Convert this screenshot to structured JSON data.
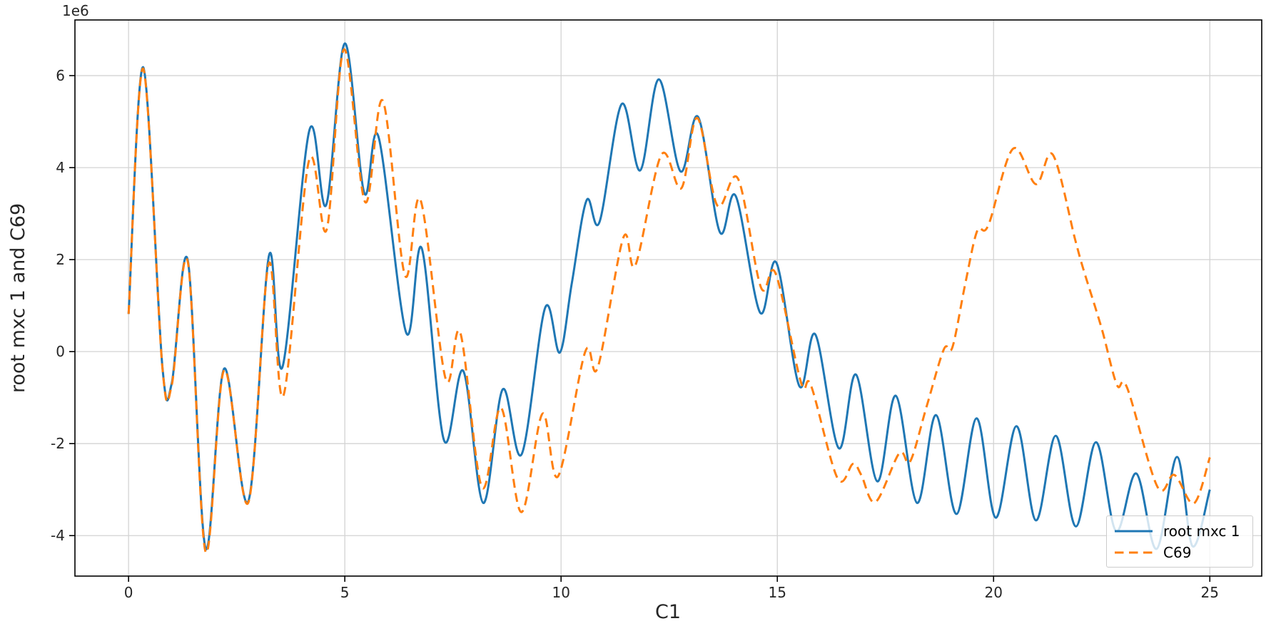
{
  "figure": {
    "offset_label": "1e6",
    "background": "#ffffff",
    "grid_color": "#d3d3d3",
    "spine_color": "#000000"
  },
  "legend": {
    "position": "lower right",
    "items": [
      {
        "label": "root mxc 1",
        "color": "#1f77b4",
        "style": "solid"
      },
      {
        "label": "C69",
        "color": "#ff7f0e",
        "style": "dashed"
      }
    ]
  },
  "chart_data": {
    "type": "line",
    "title": "",
    "xlabel": "C1",
    "ylabel": "root mxc 1 and C69",
    "y_offset_multiplier": "1e6",
    "grid": true,
    "legend_position": "lower right",
    "xlim": [
      -1.24,
      26.2
    ],
    "ylim": [
      -4.88,
      7.21
    ],
    "x_ticks": [
      0,
      5,
      10,
      15,
      20,
      25
    ],
    "y_ticks": [
      -4,
      -2,
      0,
      2,
      4,
      6
    ],
    "series": [
      {
        "name": "root mxc 1",
        "color": "#1f77b4",
        "style": "solid",
        "units": "1e6",
        "points": [
          [
            0,
            0.82
          ],
          [
            0.34,
            6.18
          ],
          [
            0.78,
            -0.3
          ],
          [
            1.0,
            -0.68
          ],
          [
            1.37,
            1.98
          ],
          [
            1.78,
            -4.27
          ],
          [
            2.21,
            -0.37
          ],
          [
            2.77,
            -3.25
          ],
          [
            3.25,
            2.1
          ],
          [
            3.56,
            -0.33
          ],
          [
            4.18,
            4.81
          ],
          [
            4.57,
            3.19
          ],
          [
            5.0,
            6.7
          ],
          [
            5.45,
            3.45
          ],
          [
            5.78,
            4.67
          ],
          [
            6.42,
            0.41
          ],
          [
            6.78,
            2.24
          ],
          [
            7.29,
            -1.92
          ],
          [
            7.74,
            -0.42
          ],
          [
            8.2,
            -3.29
          ],
          [
            8.65,
            -0.82
          ],
          [
            9.09,
            -2.23
          ],
          [
            9.63,
            0.95
          ],
          [
            9.97,
            -0.02
          ],
          [
            10.25,
            1.5
          ],
          [
            10.59,
            3.29
          ],
          [
            10.89,
            2.82
          ],
          [
            11.4,
            5.38
          ],
          [
            11.83,
            3.94
          ],
          [
            12.26,
            5.92
          ],
          [
            12.76,
            3.92
          ],
          [
            13.17,
            5.1
          ],
          [
            13.67,
            2.6
          ],
          [
            14.04,
            3.38
          ],
          [
            14.6,
            0.85
          ],
          [
            14.98,
            1.93
          ],
          [
            15.51,
            -0.75
          ],
          [
            15.88,
            0.37
          ],
          [
            16.42,
            -2.1
          ],
          [
            16.82,
            -0.5
          ],
          [
            17.31,
            -2.82
          ],
          [
            17.74,
            -0.96
          ],
          [
            18.23,
            -3.29
          ],
          [
            18.67,
            -1.38
          ],
          [
            19.14,
            -3.53
          ],
          [
            19.61,
            -1.45
          ],
          [
            20.05,
            -3.61
          ],
          [
            20.53,
            -1.62
          ],
          [
            20.98,
            -3.67
          ],
          [
            21.44,
            -1.83
          ],
          [
            21.9,
            -3.8
          ],
          [
            22.37,
            -1.97
          ],
          [
            22.83,
            -3.9
          ],
          [
            23.3,
            -2.65
          ],
          [
            23.77,
            -4.29
          ],
          [
            24.24,
            -2.29
          ],
          [
            24.6,
            -4.23
          ],
          [
            25.0,
            -3.0
          ]
        ]
      },
      {
        "name": "C69",
        "color": "#ff7f0e",
        "style": "dashed",
        "units": "1e6",
        "points": [
          [
            0,
            0.82
          ],
          [
            0.34,
            6.15
          ],
          [
            0.78,
            -0.32
          ],
          [
            1.0,
            -0.72
          ],
          [
            1.37,
            1.95
          ],
          [
            1.78,
            -4.35
          ],
          [
            2.21,
            -0.4
          ],
          [
            2.77,
            -3.28
          ],
          [
            3.24,
            1.91
          ],
          [
            3.58,
            -0.96
          ],
          [
            4.17,
            4.15
          ],
          [
            4.58,
            2.65
          ],
          [
            4.98,
            6.57
          ],
          [
            5.47,
            3.25
          ],
          [
            5.88,
            5.45
          ],
          [
            6.39,
            1.66
          ],
          [
            6.75,
            3.3
          ],
          [
            7.33,
            -0.59
          ],
          [
            7.67,
            0.41
          ],
          [
            8.17,
            -2.95
          ],
          [
            8.61,
            -1.22
          ],
          [
            9.08,
            -3.49
          ],
          [
            9.57,
            -1.35
          ],
          [
            9.93,
            -2.71
          ],
          [
            10.56,
            0.0
          ],
          [
            10.85,
            -0.34
          ],
          [
            11.44,
            2.48
          ],
          [
            11.72,
            1.88
          ],
          [
            12.32,
            4.28
          ],
          [
            12.78,
            3.55
          ],
          [
            13.15,
            5.08
          ],
          [
            13.61,
            3.18
          ],
          [
            14.09,
            3.76
          ],
          [
            14.62,
            1.4
          ],
          [
            14.96,
            1.7
          ],
          [
            15.55,
            -0.68
          ],
          [
            15.78,
            -0.74
          ],
          [
            16.39,
            -2.75
          ],
          [
            16.75,
            -2.44
          ],
          [
            16.94,
            -2.68
          ],
          [
            17.27,
            -3.27
          ],
          [
            17.82,
            -2.21
          ],
          [
            18.07,
            -2.39
          ],
          [
            18.45,
            -1.2
          ],
          [
            18.85,
            0.05
          ],
          [
            19.05,
            0.1
          ],
          [
            19.35,
            1.5
          ],
          [
            19.62,
            2.62
          ],
          [
            19.88,
            2.75
          ],
          [
            20.45,
            4.41
          ],
          [
            20.98,
            3.64
          ],
          [
            21.37,
            4.28
          ],
          [
            21.89,
            2.42
          ],
          [
            22.08,
            1.78
          ],
          [
            22.5,
            0.5
          ],
          [
            22.85,
            -0.72
          ],
          [
            23.09,
            -0.79
          ],
          [
            23.79,
            -2.94
          ],
          [
            24.18,
            -2.68
          ],
          [
            24.63,
            -3.3
          ],
          [
            25.0,
            -2.3
          ]
        ]
      }
    ]
  }
}
